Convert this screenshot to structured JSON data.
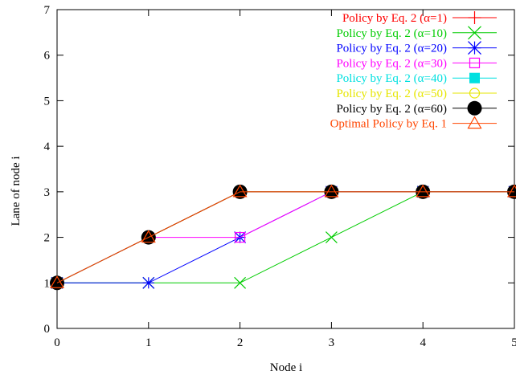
{
  "chart_data": {
    "type": "line",
    "title": "",
    "xlabel": "Node i",
    "ylabel": "Lane of node i",
    "xlim": [
      0,
      5
    ],
    "ylim": [
      0,
      7
    ],
    "x_ticks": [
      "0",
      "1",
      "2",
      "3",
      "4",
      "5"
    ],
    "y_ticks": [
      "0",
      "1",
      "2",
      "3",
      "4",
      "5",
      "6",
      "7"
    ],
    "legend_position": "top-right",
    "grid": false,
    "x": [
      0,
      1,
      2,
      3,
      4,
      5
    ],
    "series": [
      {
        "name": "Policy by Eq. 2 (α=1)",
        "values": [
          1,
          2,
          3,
          3,
          3,
          3
        ],
        "color": "#ff0000",
        "marker": "plus"
      },
      {
        "name": "Policy by Eq. 2 (α=10)",
        "values": [
          1,
          1,
          1,
          2,
          3,
          3
        ],
        "color": "#00cc00",
        "marker": "cross"
      },
      {
        "name": "Policy by Eq. 2 (α=20)",
        "values": [
          1,
          1,
          2,
          3,
          3,
          3
        ],
        "color": "#0000ff",
        "marker": "star"
      },
      {
        "name": "Policy by Eq. 2 (α=30)",
        "values": [
          1,
          2,
          2,
          3,
          3,
          3
        ],
        "color": "#ff00ff",
        "marker": "square-open"
      },
      {
        "name": "Policy by Eq. 2 (α=40)",
        "values": [
          1,
          2,
          3,
          3,
          3,
          3
        ],
        "color": "#00e0e0",
        "marker": "square-filled"
      },
      {
        "name": "Policy by Eq. 2 (α=50)",
        "values": [
          1,
          2,
          3,
          3,
          3,
          3
        ],
        "color": "#e6e600",
        "marker": "circle-open"
      },
      {
        "name": "Policy by Eq. 2 (α=60)",
        "values": [
          1,
          2,
          3,
          3,
          3,
          3
        ],
        "color": "#000000",
        "marker": "circle-filled"
      },
      {
        "name": "Optimal Policy by Eq. 1",
        "values": [
          1,
          2,
          3,
          3,
          3,
          3
        ],
        "color": "#ff4500",
        "marker": "triangle-open"
      }
    ]
  }
}
